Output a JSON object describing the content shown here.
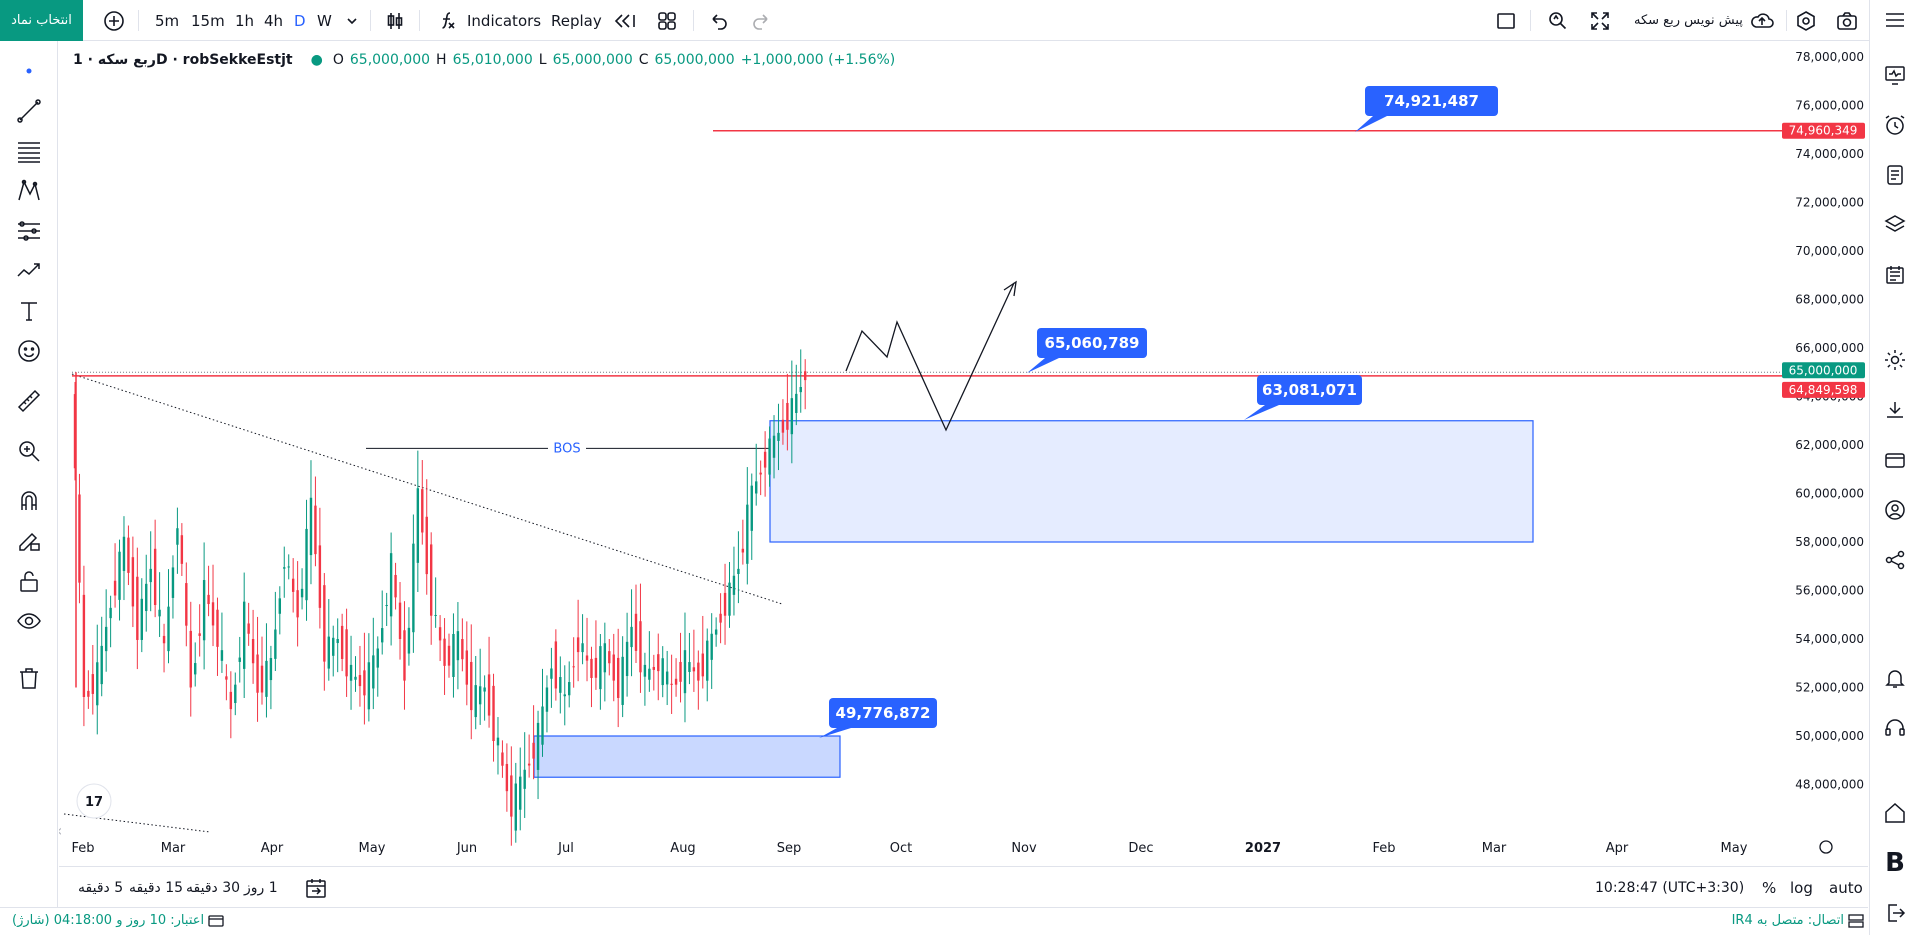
{
  "toolbar": {
    "symbol_button": "انتخاب نماد",
    "intervals": [
      "5m",
      "15m",
      "1h",
      "4h",
      "D",
      "W"
    ],
    "active_interval": "D",
    "indicators_label": "Indicators",
    "replay_label": "Replay",
    "publish_label": "پیش نویس ربع سکه"
  },
  "legend": {
    "symbol": "ربع سکه · 1D · robSekkeEstjt",
    "open_label": "O",
    "open": "65,000,000",
    "high_label": "H",
    "high": "65,010,000",
    "low_label": "L",
    "low": "65,000,000",
    "close_label": "C",
    "close": "65,000,000",
    "change": "+1,000,000 (+1.56%)"
  },
  "chart_data": {
    "type": "candlestick",
    "y_ticks": [
      48000000,
      50000000,
      52000000,
      54000000,
      56000000,
      58000000,
      60000000,
      62000000,
      64000000,
      66000000,
      68000000,
      70000000,
      72000000,
      74000000,
      76000000,
      78000000
    ],
    "y_tick_labels": [
      "48,000,000",
      "50,000,000",
      "52,000,000",
      "54,000,000",
      "56,000,000",
      "58,000,000",
      "60,000,000",
      "62,000,000",
      "64,000,000",
      "66,000,000",
      "68,000,000",
      "70,000,000",
      "72,000,000",
      "74,000,000",
      "76,000,000",
      "78,000,000"
    ],
    "ylim": [
      46000000,
      79000000
    ],
    "x_labels": [
      "Feb",
      "Mar",
      "Apr",
      "May",
      "Jun",
      "Jul",
      "Aug",
      "Sep",
      "Oct",
      "Nov",
      "Dec",
      "2027",
      "Feb",
      "Mar",
      "Apr",
      "May"
    ],
    "price_labels": [
      {
        "text": "74,960,349",
        "value": 74960349,
        "color": "#f23645"
      },
      {
        "text": "65,000,000",
        "value": 65000000,
        "color": "#089981"
      },
      {
        "text": "64,849,598",
        "value": 64849598,
        "color": "#f23645"
      }
    ],
    "callouts": [
      {
        "text": "74,921,487",
        "value": 74921487
      },
      {
        "text": "65,060,789",
        "value": 65060789
      },
      {
        "text": "63,081,071",
        "value": 63081071
      },
      {
        "text": "49,776,872",
        "value": 49776872
      }
    ],
    "zones": [
      {
        "name": "upper-zone",
        "top": 63000000,
        "bottom": 58000000
      },
      {
        "name": "lower-zone",
        "top": 50000000,
        "bottom": 48300000
      }
    ],
    "bos_label": "BOS",
    "close_series_approx": [
      65000000,
      51500000,
      52500000,
      55500000,
      58000000,
      54500000,
      57000000,
      53500000,
      59000000,
      52000000,
      56000000,
      54000000,
      51000000,
      55000000,
      52000000,
      53000000,
      57500000,
      55000000,
      59500000,
      53500000,
      54000000,
      52500000,
      52000000,
      53500000,
      57000000,
      52500000,
      60000000,
      55500000,
      53000000,
      54000000,
      51500000,
      52000000,
      49500000,
      47000000,
      48500000,
      50000000,
      53000000,
      51500000,
      54000000,
      52500000,
      53500000,
      52000000,
      54500000,
      52500000,
      53000000,
      52000000,
      53000000,
      52500000,
      54000000,
      55500000,
      57000000,
      60000000,
      61500000,
      62500000,
      63500000,
      65000000
    ]
  },
  "bottom": {
    "ranges": [
      "5 دقیقه",
      "15 دقیقه",
      "30 دقیقه",
      "1 روز"
    ],
    "time": "10:28:47 (UTC+3:30)",
    "pct": "%",
    "log": "log",
    "auto": "auto"
  },
  "status": {
    "left": "اعتبار: 10 روز و 04:18:00 (شارژ)",
    "right": "اتصال: متصل به IR4"
  },
  "colors": {
    "up": "#089981",
    "down": "#f23645",
    "accent": "#2962ff"
  }
}
